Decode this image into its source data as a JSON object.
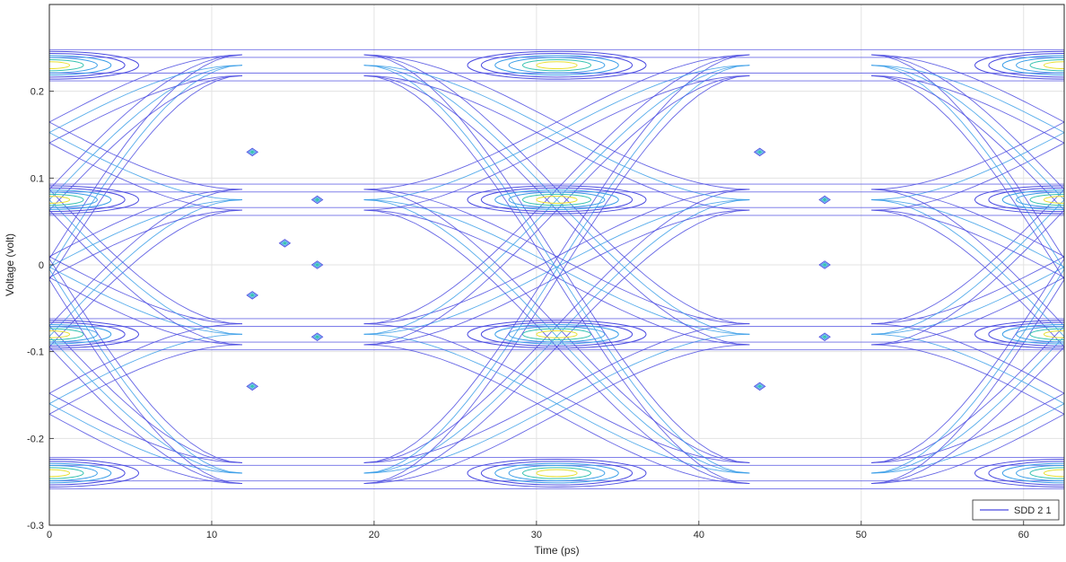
{
  "chart_data": {
    "type": "contour",
    "title": "",
    "xlabel": "Time (ps)",
    "ylabel": "Voltage (volt)",
    "xlim": [
      0,
      62.5
    ],
    "ylim": [
      -0.3,
      0.3
    ],
    "xticks": [
      0,
      10,
      20,
      30,
      40,
      50,
      60
    ],
    "yticks": [
      -0.3,
      -0.2,
      -0.1,
      0,
      0.1,
      0.2
    ],
    "xtick_labels": [
      "0",
      "10",
      "20",
      "30",
      "40",
      "50",
      "60"
    ],
    "ytick_labels": [
      "-0.3",
      "-0.2",
      "-0.1",
      "0",
      "0.1",
      "0.2"
    ],
    "grid": true,
    "unit_interval_ps": 31.25,
    "pam4_levels": [
      -0.24,
      -0.08,
      0.075,
      0.23
    ],
    "crossing_points": [
      {
        "x": 12.5,
        "y": 0.13
      },
      {
        "x": 16.5,
        "y": 0.075
      },
      {
        "x": 14.5,
        "y": 0.025
      },
      {
        "x": 16.5,
        "y": 0.0
      },
      {
        "x": 12.5,
        "y": -0.035
      },
      {
        "x": 16.5,
        "y": -0.083
      },
      {
        "x": 12.5,
        "y": -0.14
      },
      {
        "x": 43.75,
        "y": 0.13
      },
      {
        "x": 47.75,
        "y": 0.075
      },
      {
        "x": 47.75,
        "y": 0.0
      },
      {
        "x": 43.75,
        "y": -0.14
      },
      {
        "x": 47.75,
        "y": -0.083
      }
    ],
    "legend": {
      "entries": [
        "SDD 2 1"
      ],
      "position": "bottom-right"
    },
    "colors": {
      "outer_contour": "#4b4be0",
      "mid_contour": "#3a9ee8",
      "inner_contour": "#35c2b0",
      "core_contour": "#e8e030",
      "grid": "#e3e3e3",
      "axis": "#262626"
    }
  }
}
